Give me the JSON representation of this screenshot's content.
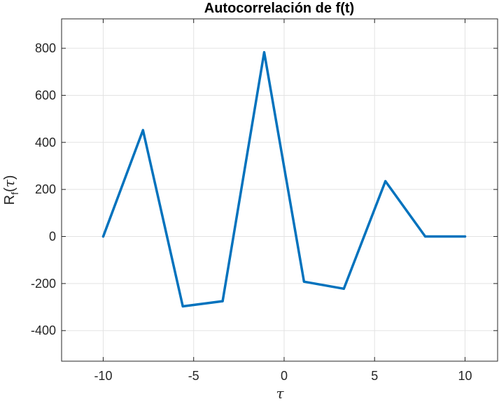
{
  "chart_data": {
    "type": "line",
    "title": "Autocorrelación de f(t)",
    "xlabel": "τ",
    "ylabel": {
      "base": "R",
      "sub": "f",
      "open": "(",
      "var": "τ",
      "close": ")"
    },
    "xlim": [
      -12.3,
      11.8
    ],
    "ylim": [
      -530,
      925
    ],
    "xticks": [
      -10,
      -5,
      0,
      5,
      10
    ],
    "yticks": [
      -400,
      -200,
      0,
      200,
      400,
      600,
      800
    ],
    "grid": true,
    "series": [
      {
        "color": "#0072BD",
        "x": [
          -10,
          -7.8,
          -5.6,
          -3.4,
          -1.1,
          1.1,
          3.3,
          5.6,
          7.8,
          10
        ],
        "y": [
          0,
          452,
          -297,
          -275,
          783,
          -192,
          -222,
          235,
          0,
          0
        ]
      }
    ]
  }
}
